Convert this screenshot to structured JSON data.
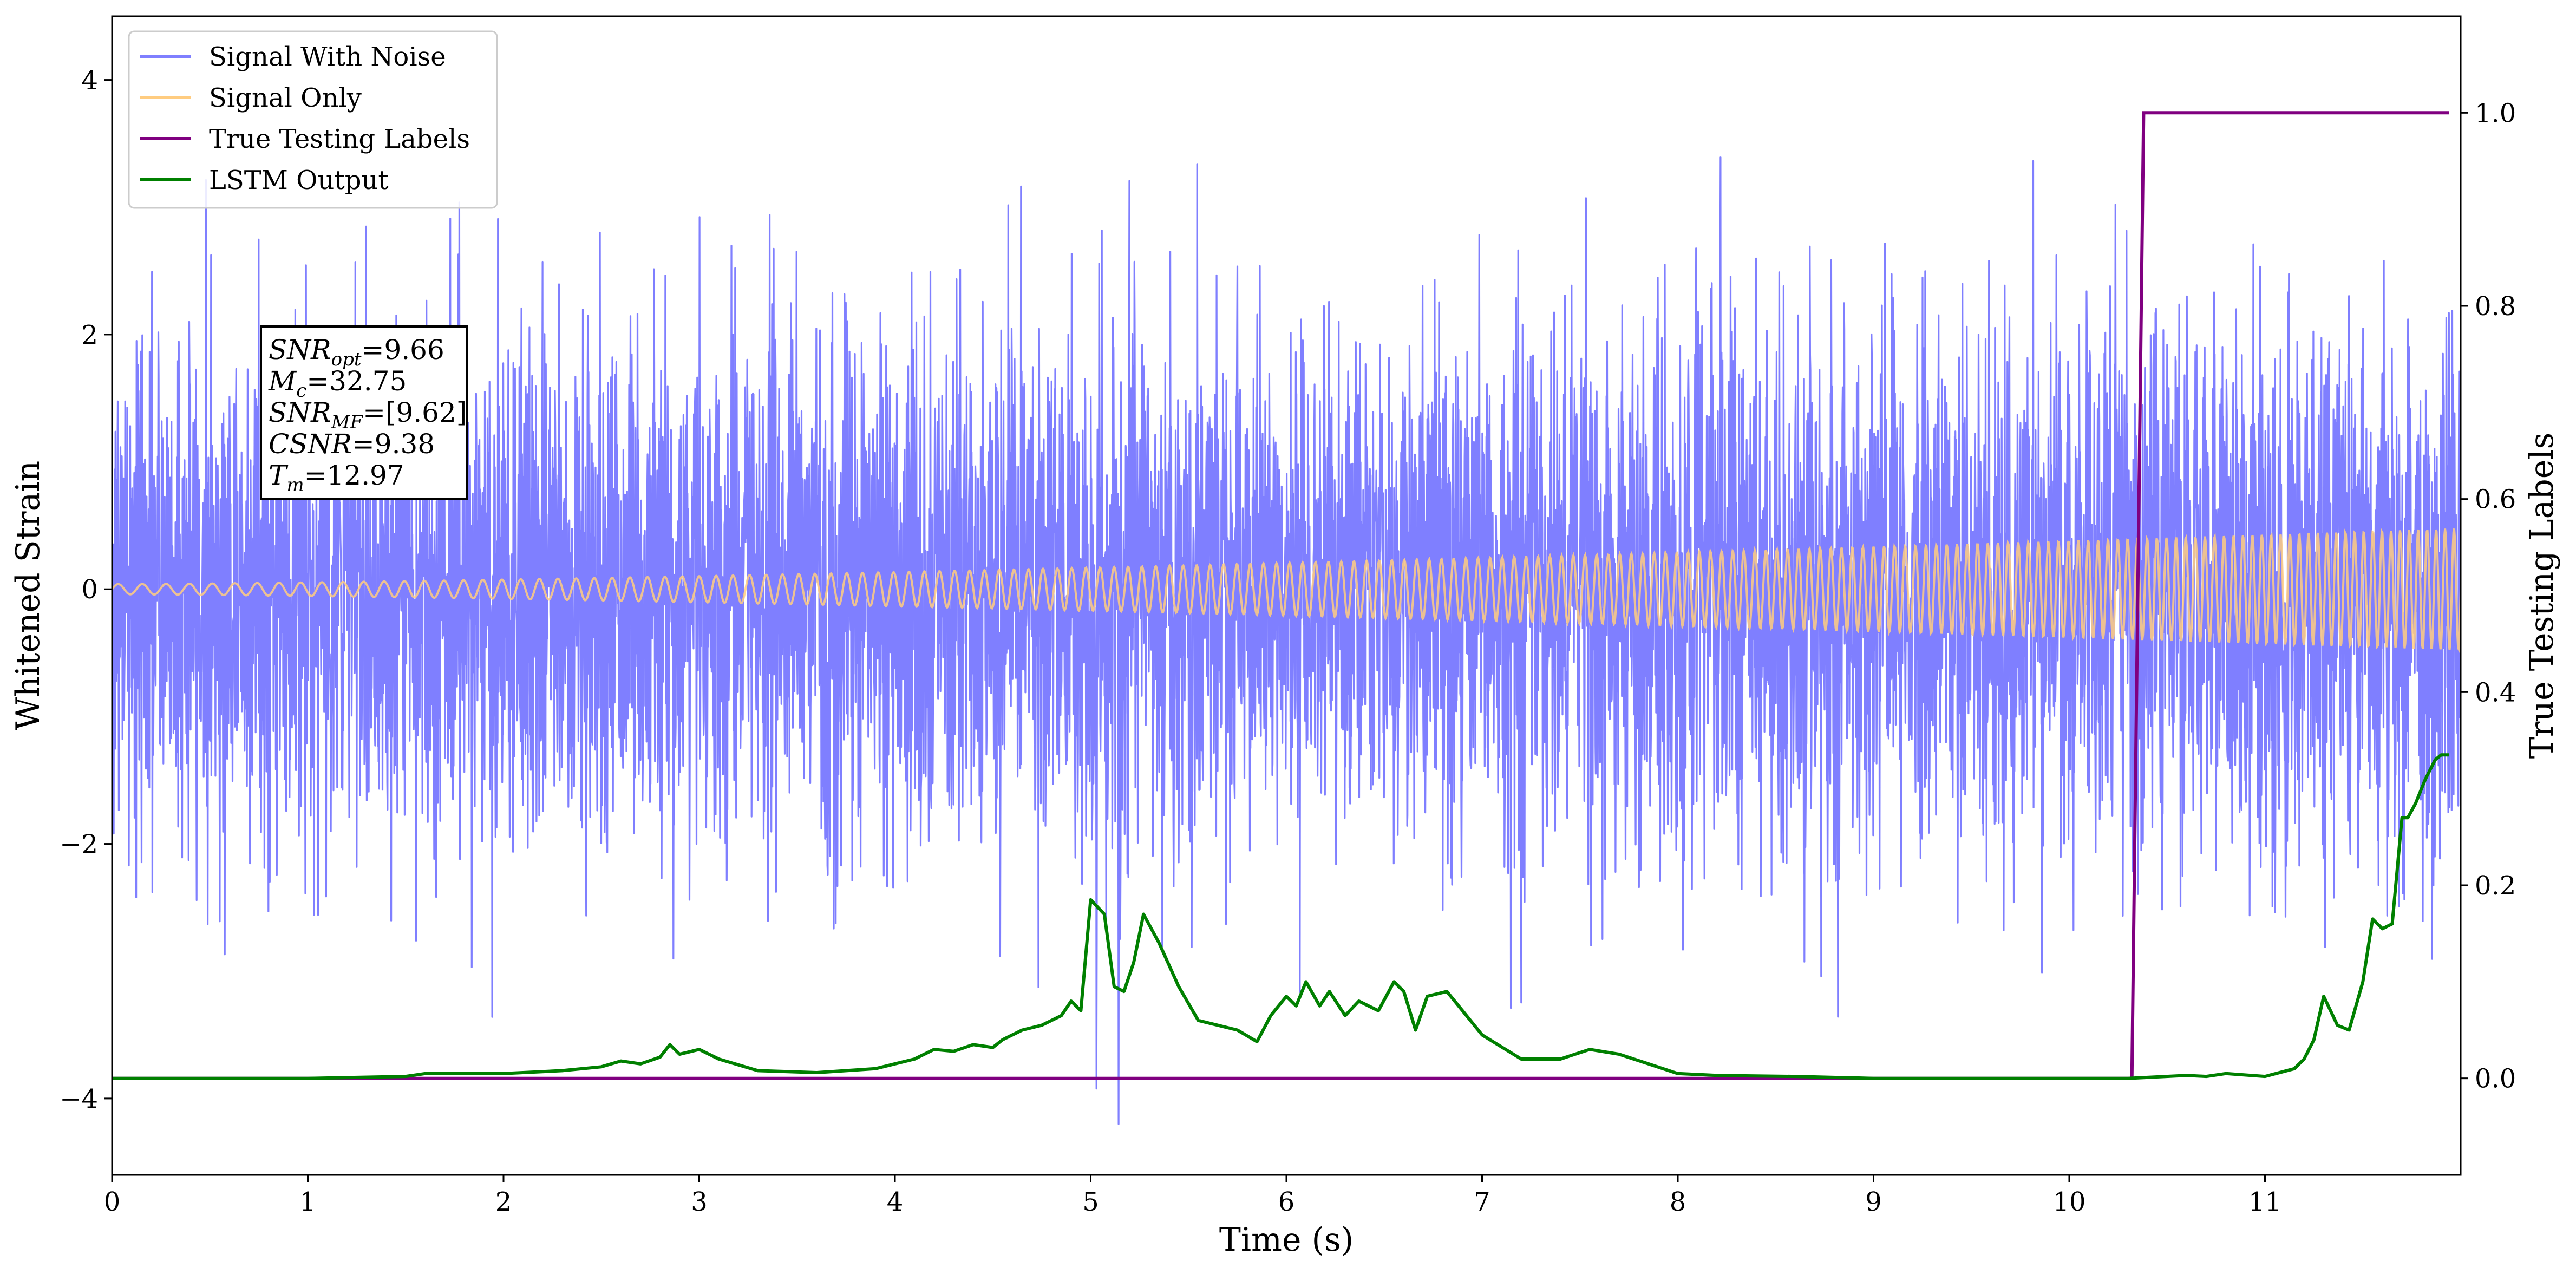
{
  "chart_data": {
    "type": "line",
    "title": "",
    "xlabel": "Time (s)",
    "ylabel": "Whitened Strain",
    "y2label": "True Testing Labels",
    "xlim": [
      0,
      12
    ],
    "ylim": [
      -4.6,
      4.5
    ],
    "y2lim": [
      -0.1,
      1.1
    ],
    "x_ticks": [
      0,
      1,
      2,
      3,
      4,
      5,
      6,
      7,
      8,
      9,
      10,
      11
    ],
    "x_tick_labels": [
      "0",
      "1",
      "2",
      "3",
      "4",
      "5",
      "6",
      "7",
      "8",
      "9",
      "10",
      "11"
    ],
    "y_ticks": [
      -4,
      -2,
      0,
      2,
      4
    ],
    "y_tick_labels": [
      "−4",
      "−2",
      "0",
      "2",
      "4"
    ],
    "y2_ticks": [
      0.0,
      0.2,
      0.4,
      0.6,
      0.8,
      1.0
    ],
    "y2_tick_labels": [
      "0.0",
      "0.2",
      "0.4",
      "0.6",
      "0.8",
      "1.0"
    ],
    "grid": false,
    "legend_position": "top-left",
    "series": [
      {
        "name": "Signal With Noise",
        "axis": "left",
        "color": "#7f7fff",
        "noise_sigma": 1.0,
        "approx_extremes": {
          "max": 4.1,
          "min": -4.2
        }
      },
      {
        "name": "Signal Only",
        "axis": "left",
        "color": "#ffcc80",
        "chirp": {
          "amp_start": 0.04,
          "amp_end": 0.48,
          "freq_start_hz": 8,
          "freq_end_hz": 22,
          "cycles": 170
        }
      },
      {
        "name": "True Testing Labels",
        "axis": "right",
        "color": "#800080",
        "x": [
          0,
          10.32,
          10.38,
          11.94
        ],
        "y": [
          0,
          0,
          1,
          1
        ]
      },
      {
        "name": "LSTM Output",
        "axis": "right",
        "color": "#008000",
        "x": [
          0,
          0.5,
          1.0,
          1.5,
          1.6,
          2.0,
          2.3,
          2.5,
          2.6,
          2.7,
          2.8,
          2.85,
          2.9,
          3.0,
          3.1,
          3.3,
          3.6,
          3.9,
          4.1,
          4.2,
          4.3,
          4.4,
          4.5,
          4.55,
          4.65,
          4.75,
          4.85,
          4.9,
          4.95,
          5.0,
          5.07,
          5.12,
          5.17,
          5.22,
          5.27,
          5.35,
          5.45,
          5.55,
          5.75,
          5.85,
          5.92,
          6.0,
          6.05,
          6.1,
          6.17,
          6.22,
          6.3,
          6.37,
          6.47,
          6.55,
          6.6,
          6.66,
          6.72,
          6.82,
          6.9,
          7.0,
          7.2,
          7.4,
          7.55,
          7.7,
          7.85,
          8.0,
          8.2,
          8.6,
          9.0,
          9.5,
          10.0,
          10.3,
          10.6,
          10.7,
          10.8,
          11.0,
          11.15,
          11.2,
          11.25,
          11.3,
          11.37,
          11.43,
          11.5,
          11.55,
          11.6,
          11.65,
          11.7,
          11.73,
          11.77,
          11.82,
          11.87,
          11.9,
          11.94
        ],
        "y": [
          0.0,
          0.0,
          0.0,
          0.002,
          0.005,
          0.005,
          0.008,
          0.012,
          0.018,
          0.015,
          0.022,
          0.035,
          0.025,
          0.03,
          0.02,
          0.008,
          0.006,
          0.01,
          0.02,
          0.03,
          0.028,
          0.035,
          0.032,
          0.04,
          0.05,
          0.055,
          0.065,
          0.08,
          0.07,
          0.185,
          0.17,
          0.095,
          0.09,
          0.12,
          0.17,
          0.14,
          0.095,
          0.06,
          0.05,
          0.038,
          0.065,
          0.085,
          0.075,
          0.1,
          0.075,
          0.09,
          0.065,
          0.08,
          0.07,
          0.1,
          0.09,
          0.05,
          0.085,
          0.09,
          0.07,
          0.045,
          0.02,
          0.02,
          0.03,
          0.025,
          0.015,
          0.005,
          0.003,
          0.002,
          0.0,
          0.0,
          0.0,
          0.0,
          0.003,
          0.002,
          0.005,
          0.002,
          0.01,
          0.02,
          0.04,
          0.085,
          0.055,
          0.05,
          0.1,
          0.165,
          0.155,
          0.16,
          0.27,
          0.27,
          0.285,
          0.31,
          0.33,
          0.335,
          0.335
        ]
      }
    ],
    "annotation": {
      "lines": [
        {
          "base": "SNR",
          "sub": "opt",
          "text": "=9.66"
        },
        {
          "base": "M",
          "sub": "c",
          "text": "=32.75"
        },
        {
          "base": "SNR",
          "sub": "MF",
          "text": "=[9.62]"
        },
        {
          "base": "CSNR",
          "sub": "",
          "text": "=9.38"
        },
        {
          "base": "T",
          "sub": "m",
          "text": "=12.97"
        }
      ]
    }
  }
}
